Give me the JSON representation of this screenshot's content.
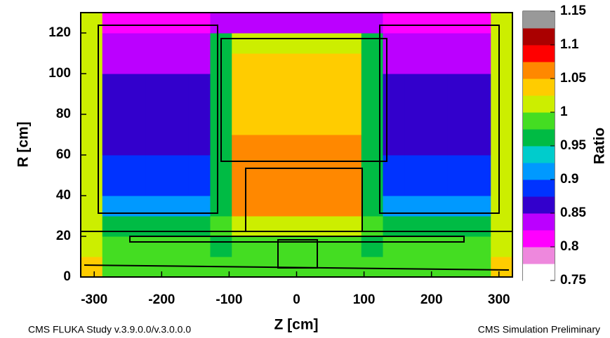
{
  "chart_data": {
    "type": "heatmap",
    "xlabel": "Z [cm]",
    "ylabel": "R [cm]",
    "footnote_left": "CMS FLUKA Study v.3.9.0.0/v.3.0.0.0",
    "footnote_right": "CMS Simulation Preliminary",
    "xlim": [
      -320,
      320
    ],
    "ylim": [
      0,
      130
    ],
    "xticks": [
      -300,
      -200,
      -100,
      0,
      100,
      200,
      300
    ],
    "yticks": [
      0,
      20,
      40,
      60,
      80,
      100,
      120
    ],
    "xbins": [
      -320,
      -288,
      -256,
      -224,
      -192,
      -160,
      -128,
      -96,
      -64,
      -32,
      0,
      32,
      64,
      96,
      128,
      160,
      192,
      224,
      256,
      288,
      320
    ],
    "ybins": [
      0,
      10,
      20,
      30,
      40,
      50,
      60,
      70,
      80,
      90,
      100,
      110,
      120,
      130
    ],
    "z": [
      [
        1.03,
        0.99,
        0.99,
        0.99,
        0.99,
        0.99,
        0.98,
        0.99,
        0.99,
        0.99,
        0.99,
        0.99,
        0.99,
        0.98,
        0.99,
        0.99,
        0.99,
        0.99,
        0.99,
        1.03
      ],
      [
        1.02,
        0.98,
        0.98,
        0.98,
        0.98,
        0.98,
        0.97,
        0.99,
        0.99,
        0.99,
        0.99,
        0.99,
        0.99,
        0.97,
        0.98,
        0.98,
        0.98,
        0.98,
        0.98,
        1.02
      ],
      [
        1.02,
        0.97,
        0.97,
        0.97,
        0.97,
        0.97,
        0.98,
        1.01,
        1.01,
        1.01,
        1.01,
        1.01,
        1.01,
        0.98,
        0.97,
        0.97,
        0.97,
        0.97,
        0.97,
        1.02
      ],
      [
        1.02,
        0.9,
        0.9,
        0.9,
        0.9,
        0.9,
        0.96,
        1.05,
        1.05,
        1.05,
        1.05,
        1.05,
        1.05,
        0.96,
        0.9,
        0.9,
        0.9,
        0.9,
        0.9,
        1.02
      ],
      [
        1.02,
        0.89,
        0.89,
        0.89,
        0.89,
        0.89,
        0.96,
        1.06,
        1.06,
        1.06,
        1.06,
        1.06,
        1.06,
        0.96,
        0.89,
        0.89,
        0.89,
        0.89,
        0.89,
        1.02
      ],
      [
        1.02,
        0.88,
        0.88,
        0.88,
        0.88,
        0.88,
        0.97,
        1.05,
        1.05,
        1.05,
        1.05,
        1.05,
        1.05,
        0.97,
        0.88,
        0.88,
        0.88,
        0.88,
        0.88,
        1.02
      ],
      [
        1.02,
        0.87,
        0.87,
        0.87,
        0.87,
        0.87,
        0.97,
        1.05,
        1.05,
        1.05,
        1.05,
        1.05,
        1.05,
        0.97,
        0.87,
        0.87,
        0.87,
        0.87,
        0.87,
        1.02
      ],
      [
        1.02,
        0.86,
        0.86,
        0.86,
        0.86,
        0.86,
        0.97,
        1.04,
        1.04,
        1.04,
        1.04,
        1.04,
        1.04,
        0.97,
        0.86,
        0.86,
        0.86,
        0.86,
        0.86,
        1.02
      ],
      [
        1.02,
        0.85,
        0.85,
        0.85,
        0.85,
        0.85,
        0.97,
        1.04,
        1.04,
        1.04,
        1.04,
        1.04,
        1.04,
        0.97,
        0.85,
        0.85,
        0.85,
        0.85,
        0.85,
        1.02
      ],
      [
        1.02,
        0.85,
        0.85,
        0.85,
        0.85,
        0.85,
        0.97,
        1.03,
        1.03,
        1.03,
        1.03,
        1.03,
        1.03,
        0.97,
        0.85,
        0.85,
        0.85,
        0.85,
        0.85,
        1.02
      ],
      [
        1.02,
        0.84,
        0.84,
        0.84,
        0.84,
        0.84,
        0.97,
        1.03,
        1.03,
        1.03,
        1.03,
        1.03,
        1.03,
        0.97,
        0.84,
        0.84,
        0.84,
        0.84,
        0.84,
        1.02
      ],
      [
        1.02,
        0.83,
        0.83,
        0.83,
        0.83,
        0.83,
        0.96,
        1.02,
        1.02,
        1.02,
        1.02,
        1.02,
        1.02,
        0.96,
        0.83,
        0.83,
        0.83,
        0.83,
        0.83,
        1.02
      ],
      [
        1.01,
        0.82,
        0.82,
        0.82,
        0.82,
        0.82,
        0.83,
        0.84,
        0.84,
        0.84,
        0.84,
        0.84,
        0.84,
        0.83,
        0.82,
        0.82,
        0.82,
        0.82,
        0.82,
        1.01
      ]
    ],
    "colorbar": {
      "label": "Ratio",
      "zlim": [
        0.75,
        1.15
      ],
      "zticks": [
        0.75,
        0.8,
        0.85,
        0.9,
        0.95,
        1,
        1.05,
        1.1,
        1.15
      ],
      "colors": [
        "#ffffff",
        "#ee88dd",
        "#ff00ff",
        "#bb00ff",
        "#3300cc",
        "#0033ff",
        "#0099ff",
        "#00cccc",
        "#00bb44",
        "#44dd22",
        "#ccee00",
        "#ffcc00",
        "#ff8800",
        "#ff0000",
        "#aa0000",
        "#999999"
      ]
    }
  }
}
